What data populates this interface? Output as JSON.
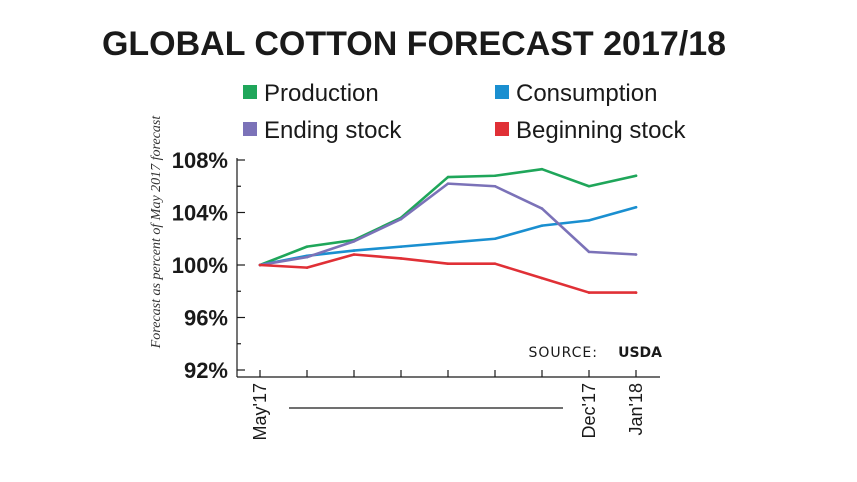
{
  "chart_data": {
    "type": "line",
    "title": "GLOBAL COTTON FORECAST 2017/18",
    "ylabel": "Forecast as percent of May 2017 forecast",
    "xlabel": "",
    "source_label": "SOURCE:",
    "source_value": "USDA",
    "ylim": [
      92,
      108
    ],
    "yticks": [
      92,
      96,
      100,
      104,
      108
    ],
    "ytick_labels": [
      "92%",
      "96%",
      "100%",
      "104%",
      "108%"
    ],
    "x": [
      0,
      1,
      2,
      3,
      4,
      5,
      6,
      7,
      8
    ],
    "x_tick_positions": [
      0,
      1,
      2,
      3,
      4,
      5,
      6,
      7,
      8
    ],
    "x_labels": [
      {
        "x": 0,
        "label": "May'17"
      },
      {
        "x": 7,
        "label": "Dec'17"
      },
      {
        "x": 8,
        "label": "Jan'18"
      }
    ],
    "series": [
      {
        "name": "Production",
        "color": "#1fa65a",
        "values": [
          100,
          101.4,
          101.9,
          103.6,
          106.7,
          106.8,
          107.3,
          106.0,
          106.8
        ]
      },
      {
        "name": "Consumption",
        "color": "#1a8fd0",
        "values": [
          100,
          100.7,
          101.1,
          101.4,
          101.7,
          102.0,
          103.0,
          103.4,
          104.4
        ]
      },
      {
        "name": "Ending stock",
        "color": "#7b72b8",
        "values": [
          100,
          100.6,
          101.8,
          103.5,
          106.2,
          106.0,
          104.3,
          101.0,
          100.8
        ]
      },
      {
        "name": "Beginning stock",
        "color": "#e03036",
        "values": [
          100,
          99.8,
          100.8,
          100.5,
          100.1,
          100.1,
          99.0,
          97.9,
          97.9
        ]
      }
    ]
  }
}
